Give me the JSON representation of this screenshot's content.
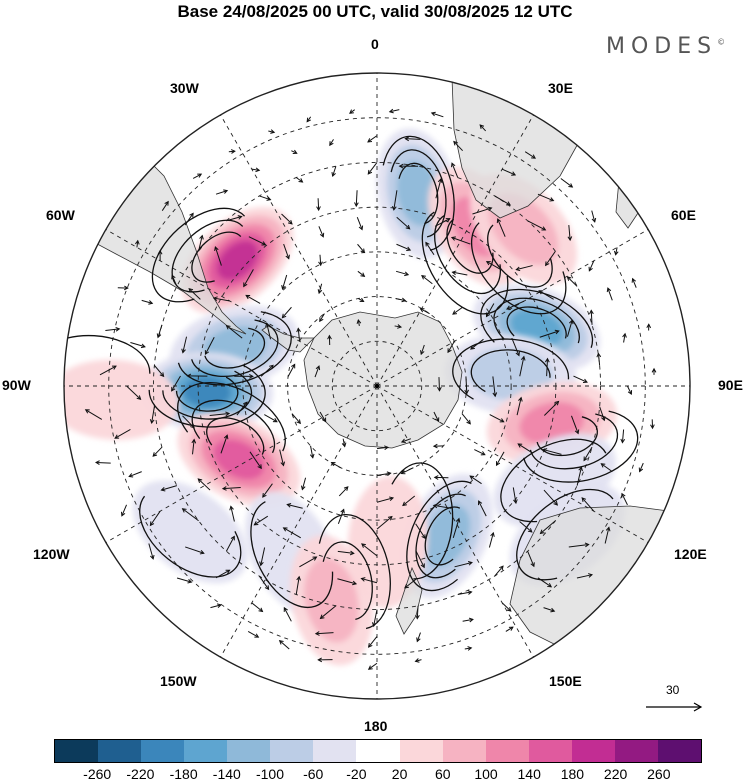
{
  "title": "Base 24/08/2025 00 UTC, valid 30/08/2025 12 UTC",
  "brand": "MODES",
  "brand_mark": "©",
  "meridian_labels": {
    "lon_0": "0",
    "lon_30e": "30E",
    "lon_60e": "60E",
    "lon_90e": "90E",
    "lon_120e": "120E",
    "lon_150e": "150E",
    "lon_180": "180",
    "lon_150w": "150W",
    "lon_120w": "120W",
    "lon_90w": "90W",
    "lon_60w": "60W",
    "lon_30w": "30W"
  },
  "reference_vector": "30",
  "colorbar": {
    "colors": [
      "#0c3a5b",
      "#1f5f90",
      "#3b86bb",
      "#5ea5d0",
      "#8fb9d9",
      "#bccde6",
      "#e2e2f1",
      "#ffffff",
      "#fbd7da",
      "#f6b3c2",
      "#ef86aa",
      "#e05a9e",
      "#c22d93",
      "#931a82",
      "#5e0f70"
    ],
    "labels": [
      "-260",
      "-220",
      "-180",
      "-140",
      "-100",
      "-60",
      "-20",
      "20",
      "60",
      "100",
      "140",
      "180",
      "220",
      "260"
    ]
  },
  "anomalies": [
    {
      "lon": -48,
      "lat": -48,
      "value": 200
    },
    {
      "lon": -75,
      "lat": -57,
      "value": -120
    },
    {
      "lon": -92,
      "lat": -52,
      "value": -200
    },
    {
      "lon": -118,
      "lat": -55,
      "value": 170
    },
    {
      "lon": -93,
      "lat": -31,
      "value": 60
    },
    {
      "lon": -128,
      "lat": -37,
      "value": -60
    },
    {
      "lon": -153,
      "lat": -48,
      "value": -60
    },
    {
      "lon": 12,
      "lat": -46,
      "value": -120
    },
    {
      "lon": 32,
      "lat": -48,
      "value": 150
    },
    {
      "lon": 43,
      "lat": -42,
      "value": 110
    },
    {
      "lon": 70,
      "lat": -52,
      "value": -170
    },
    {
      "lon": 85,
      "lat": -60,
      "value": -90
    },
    {
      "lon": 102,
      "lat": -50,
      "value": 120
    },
    {
      "lon": 118,
      "lat": -45,
      "value": -30
    },
    {
      "lon": 155,
      "lat": -53,
      "value": -150
    },
    {
      "lon": 176,
      "lat": -55,
      "value": 60
    },
    {
      "lon": -168,
      "lat": -41,
      "value": 90
    },
    {
      "lon": 128,
      "lat": -36,
      "value": -50
    }
  ]
}
